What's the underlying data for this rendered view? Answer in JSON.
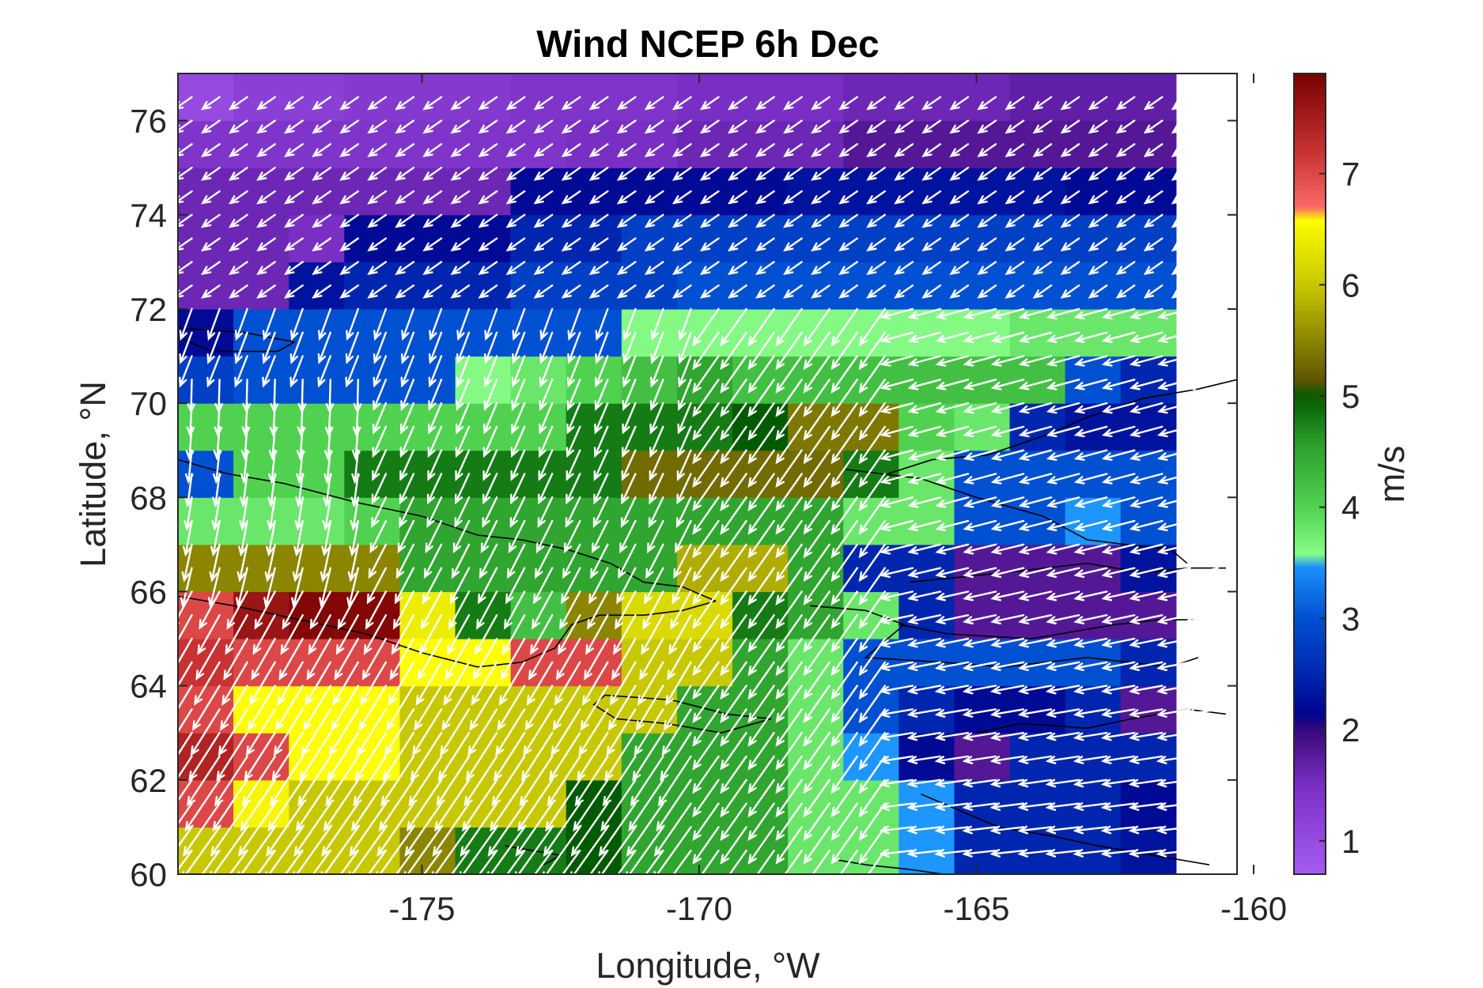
{
  "chart_data": {
    "type": "heatmap",
    "title": "Wind NCEP 6h Dec",
    "xlabel": "Longitude, °W",
    "ylabel": "Latitude, °N",
    "colorbar_label": "m/s",
    "xlim": [
      -179.4,
      -160.3
    ],
    "ylim": [
      60,
      77
    ],
    "x_ticks": [
      -175,
      -170,
      -165,
      -160
    ],
    "x_tick_labels": [
      "-175",
      "-170",
      "-165",
      "-160"
    ],
    "y_ticks": [
      60,
      62,
      64,
      66,
      68,
      70,
      72,
      74,
      76
    ],
    "y_tick_labels": [
      "60",
      "62",
      "64",
      "66",
      "68",
      "70",
      "72",
      "74",
      "76"
    ],
    "colorbar_ticks": [
      1,
      2,
      3,
      4,
      5,
      6,
      7
    ],
    "colorbar_tick_labels": [
      "1",
      "2",
      "3",
      "4",
      "5",
      "6",
      "7"
    ],
    "colorbar_range": [
      0.7,
      7.9
    ],
    "grid": {
      "lon_start": -179.4,
      "lon_step": 1.0,
      "cols": 18,
      "lat_start": 60,
      "lat_step": 1.0,
      "rows": 17
    },
    "wind_speed_rows_south_to_north": [
      [
        6.0,
        6.0,
        6.0,
        6.0,
        5.5,
        4.8,
        4.8,
        5.0,
        4.5,
        4.5,
        4.5,
        3.8,
        3.8,
        3.5,
        2.5,
        2.5,
        2.5,
        2.3
      ],
      [
        7.0,
        6.5,
        6.0,
        6.0,
        6.0,
        6.0,
        6.0,
        5.0,
        4.5,
        4.5,
        4.5,
        3.8,
        3.8,
        3.5,
        2.5,
        2.5,
        2.5,
        2.2
      ],
      [
        7.4,
        7.0,
        6.6,
        6.6,
        6.0,
        6.0,
        6.0,
        6.0,
        4.5,
        4.5,
        4.5,
        3.8,
        3.5,
        2.2,
        1.8,
        2.5,
        2.5,
        2.5
      ],
      [
        7.0,
        6.6,
        6.6,
        6.6,
        6.0,
        6.0,
        6.0,
        6.0,
        6.0,
        4.5,
        4.5,
        3.8,
        3.0,
        2.5,
        2.2,
        2.2,
        2.5,
        1.8
      ],
      [
        7.2,
        7.0,
        7.0,
        7.0,
        6.6,
        6.6,
        7.0,
        7.0,
        6.0,
        6.0,
        4.5,
        3.8,
        3.0,
        3.0,
        3.0,
        3.0,
        3.0,
        2.5
      ],
      [
        7.0,
        7.6,
        7.8,
        7.8,
        6.4,
        4.8,
        4.2,
        5.5,
        6.2,
        6.2,
        4.8,
        4.5,
        3.8,
        2.5,
        1.8,
        1.8,
        1.8,
        1.8
      ],
      [
        5.5,
        5.5,
        5.5,
        5.5,
        4.5,
        4.5,
        4.5,
        4.5,
        4.5,
        5.8,
        5.8,
        4.5,
        2.5,
        2.5,
        1.8,
        1.8,
        1.8,
        2.3
      ],
      [
        3.8,
        3.8,
        3.8,
        4.0,
        4.5,
        4.5,
        4.5,
        4.5,
        4.5,
        4.5,
        4.5,
        4.5,
        3.8,
        3.8,
        3.0,
        3.0,
        3.5,
        3.0
      ],
      [
        3.0,
        4.0,
        4.0,
        4.8,
        4.8,
        4.8,
        4.8,
        4.8,
        5.3,
        5.3,
        5.3,
        5.3,
        4.8,
        3.8,
        3.0,
        3.0,
        3.0,
        3.0
      ],
      [
        4.0,
        4.0,
        4.0,
        4.0,
        4.0,
        4.0,
        4.0,
        4.8,
        4.8,
        4.8,
        5.0,
        5.4,
        5.4,
        4.0,
        3.8,
        2.5,
        2.3,
        2.3
      ],
      [
        2.8,
        3.0,
        3.0,
        3.0,
        3.0,
        3.6,
        3.8,
        4.0,
        4.2,
        4.5,
        4.2,
        4.2,
        4.2,
        4.2,
        4.2,
        4.2,
        3.0,
        2.5
      ],
      [
        2.2,
        3.0,
        3.0,
        3.0,
        3.0,
        3.0,
        3.0,
        3.0,
        3.6,
        3.6,
        3.6,
        3.6,
        3.6,
        3.6,
        3.6,
        3.8,
        3.8,
        3.8
      ],
      [
        1.6,
        1.6,
        2.3,
        2.5,
        2.5,
        2.5,
        2.8,
        2.8,
        2.8,
        3.0,
        3.0,
        3.0,
        3.0,
        3.0,
        3.0,
        3.0,
        3.0,
        3.0
      ],
      [
        1.6,
        1.6,
        1.5,
        2.2,
        2.2,
        2.2,
        2.5,
        2.5,
        2.8,
        2.8,
        2.8,
        2.8,
        2.8,
        2.8,
        2.8,
        2.8,
        2.8,
        2.8
      ],
      [
        1.6,
        1.6,
        1.6,
        1.6,
        1.6,
        1.6,
        2.2,
        2.2,
        2.2,
        2.2,
        2.2,
        2.3,
        2.3,
        2.3,
        2.3,
        2.3,
        2.2,
        2.2
      ],
      [
        1.4,
        1.4,
        1.4,
        1.4,
        1.4,
        1.4,
        1.4,
        1.5,
        1.5,
        1.6,
        1.6,
        1.6,
        1.8,
        1.8,
        1.8,
        1.8,
        1.8,
        1.8
      ],
      [
        1.0,
        1.2,
        1.2,
        1.3,
        1.3,
        1.3,
        1.4,
        1.4,
        1.4,
        1.5,
        1.5,
        1.5,
        1.6,
        1.6,
        1.6,
        1.7,
        1.7,
        1.7
      ]
    ],
    "colormap_stops": [
      {
        "v": 0.7,
        "c": "#a55cf0"
      },
      {
        "v": 1.5,
        "c": "#7a2fc4"
      },
      {
        "v": 2.0,
        "c": "#3a0878"
      },
      {
        "v": 2.1,
        "c": "#00008c"
      },
      {
        "v": 2.6,
        "c": "#0030b8"
      },
      {
        "v": 3.0,
        "c": "#0050d2"
      },
      {
        "v": 3.5,
        "c": "#1e96ff"
      },
      {
        "v": 3.55,
        "c": "#8aff8a"
      },
      {
        "v": 4.0,
        "c": "#50d250"
      },
      {
        "v": 4.6,
        "c": "#2a9c2a"
      },
      {
        "v": 5.0,
        "c": "#005a00"
      },
      {
        "v": 5.1,
        "c": "#5a5000"
      },
      {
        "v": 6.0,
        "c": "#c8c800"
      },
      {
        "v": 6.6,
        "c": "#ffff00"
      },
      {
        "v": 6.65,
        "c": "#ff6e6e"
      },
      {
        "v": 7.2,
        "c": "#c83232"
      },
      {
        "v": 7.9,
        "c": "#780000"
      }
    ],
    "arrow_color": "#ffffff",
    "coastline_color": "#000000"
  }
}
